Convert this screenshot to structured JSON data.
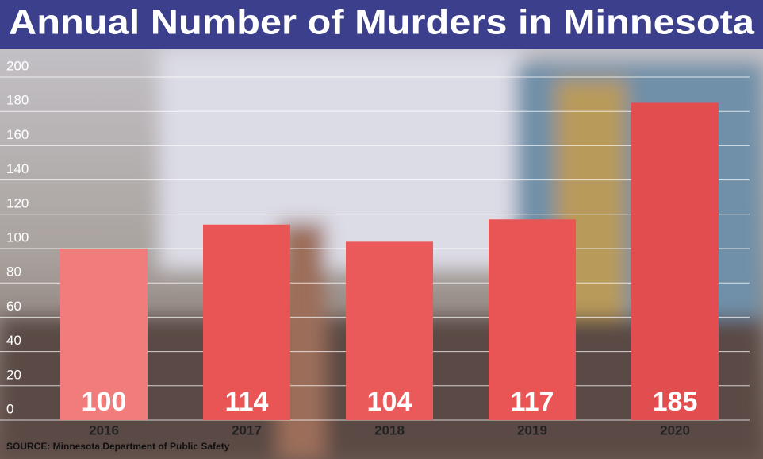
{
  "chart_data": {
    "type": "bar",
    "title": "Annual Number of Murders in Minnesota",
    "categories": [
      "2016",
      "2017",
      "2018",
      "2019",
      "2020"
    ],
    "values": [
      100,
      114,
      104,
      117,
      185
    ],
    "colors": [
      "#f07c7c",
      "#e95454",
      "#ea5a5a",
      "#e95454",
      "#e24e50"
    ],
    "ylim": [
      0,
      200
    ],
    "yticks": [
      0,
      20,
      40,
      60,
      80,
      100,
      120,
      140,
      160,
      180,
      200
    ],
    "grid": true,
    "source": "SOURCE: Minnesota Department of Public Safety"
  }
}
